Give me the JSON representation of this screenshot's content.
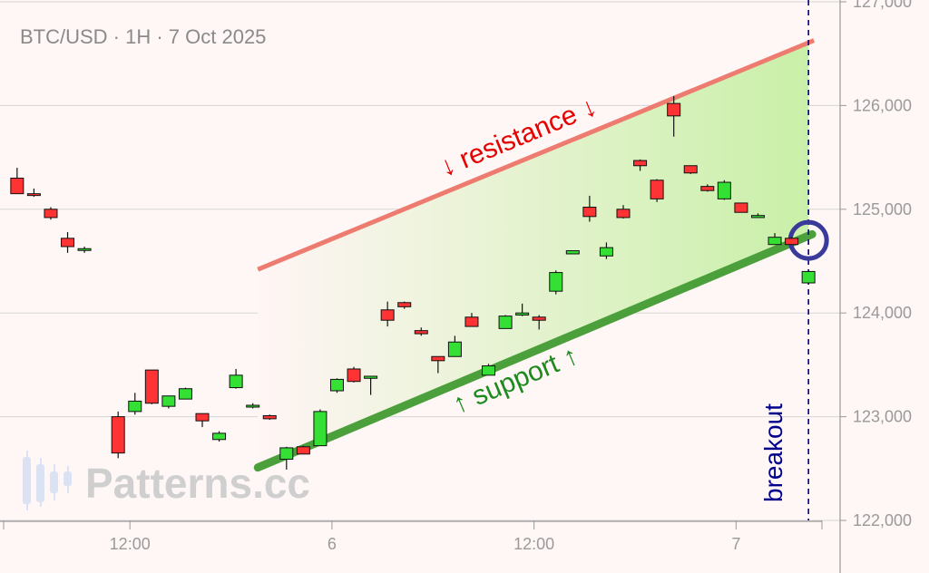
{
  "header": {
    "title": "BTC/USD · 1H · 7 Oct 2025"
  },
  "watermark": {
    "text": "Patterns.cc"
  },
  "chart_data": {
    "type": "candlestick",
    "symbol": "BTC/USD",
    "timeframe": "1H",
    "ylim": [
      122000,
      127000
    ],
    "y_ticks": [
      {
        "value": 122000,
        "label": "122,000"
      },
      {
        "value": 123000,
        "label": "123,000"
      },
      {
        "value": 124000,
        "label": "124,000"
      },
      {
        "value": 125000,
        "label": "125,000"
      },
      {
        "value": 126000,
        "label": "126,000"
      },
      {
        "value": 127000,
        "label": "127,000"
      }
    ],
    "x_ticks": [
      {
        "index": 6.7,
        "label": "12:00"
      },
      {
        "index": 18.7,
        "label": "6"
      },
      {
        "index": 30.7,
        "label": "12:00"
      },
      {
        "index": 42.7,
        "label": "7"
      }
    ],
    "x_range": [
      -0.8,
      47.8
    ],
    "candles": [
      {
        "i": 0,
        "o": 125300,
        "h": 125400,
        "l": 125150,
        "c": 125150
      },
      {
        "i": 1,
        "o": 125150,
        "h": 125200,
        "l": 125120,
        "c": 125140
      },
      {
        "i": 2,
        "o": 125000,
        "h": 125020,
        "l": 124900,
        "c": 124920
      },
      {
        "i": 3,
        "o": 124720,
        "h": 124780,
        "l": 124580,
        "c": 124640
      },
      {
        "i": 4,
        "o": 124620,
        "h": 124640,
        "l": 124580,
        "c": 124620
      },
      {
        "i": 6,
        "o": 123000,
        "h": 123050,
        "l": 122600,
        "c": 122650
      },
      {
        "i": 7,
        "o": 123050,
        "h": 123230,
        "l": 123020,
        "c": 123150
      },
      {
        "i": 8,
        "o": 123450,
        "h": 123450,
        "l": 123120,
        "c": 123130
      },
      {
        "i": 9,
        "o": 123100,
        "h": 123200,
        "l": 123080,
        "c": 123200
      },
      {
        "i": 10,
        "o": 123170,
        "h": 123280,
        "l": 123170,
        "c": 123270
      },
      {
        "i": 11,
        "o": 123030,
        "h": 123030,
        "l": 122900,
        "c": 122960
      },
      {
        "i": 12,
        "o": 122780,
        "h": 122860,
        "l": 122760,
        "c": 122840
      },
      {
        "i": 13,
        "o": 123280,
        "h": 123460,
        "l": 123270,
        "c": 123400
      },
      {
        "i": 14,
        "o": 123100,
        "h": 123130,
        "l": 123080,
        "c": 123110
      },
      {
        "i": 15,
        "o": 123010,
        "h": 123020,
        "l": 122970,
        "c": 122980
      },
      {
        "i": 16,
        "o": 122590,
        "h": 122710,
        "l": 122490,
        "c": 122700
      },
      {
        "i": 17,
        "o": 122710,
        "h": 122720,
        "l": 122640,
        "c": 122640
      },
      {
        "i": 18,
        "o": 122720,
        "h": 123070,
        "l": 122720,
        "c": 123050
      },
      {
        "i": 19,
        "o": 123250,
        "h": 123370,
        "l": 123230,
        "c": 123360
      },
      {
        "i": 20,
        "o": 123460,
        "h": 123480,
        "l": 123330,
        "c": 123340
      },
      {
        "i": 21,
        "o": 123370,
        "h": 123390,
        "l": 123210,
        "c": 123390
      },
      {
        "i": 22,
        "o": 124030,
        "h": 124110,
        "l": 123870,
        "c": 123930
      },
      {
        "i": 23,
        "o": 124100,
        "h": 124110,
        "l": 124040,
        "c": 124060
      },
      {
        "i": 24,
        "o": 123830,
        "h": 123860,
        "l": 123780,
        "c": 123800
      },
      {
        "i": 25,
        "o": 123580,
        "h": 123580,
        "l": 123420,
        "c": 123540
      },
      {
        "i": 26,
        "o": 123580,
        "h": 123780,
        "l": 123580,
        "c": 123720
      },
      {
        "i": 27,
        "o": 123960,
        "h": 124000,
        "l": 123870,
        "c": 123870
      },
      {
        "i": 28,
        "o": 123400,
        "h": 123510,
        "l": 123400,
        "c": 123490
      },
      {
        "i": 29,
        "o": 123850,
        "h": 123980,
        "l": 123850,
        "c": 123970
      },
      {
        "i": 30,
        "o": 123980,
        "h": 124090,
        "l": 123970,
        "c": 124000
      },
      {
        "i": 31,
        "o": 123960,
        "h": 123980,
        "l": 123840,
        "c": 123930
      },
      {
        "i": 32,
        "o": 124210,
        "h": 124410,
        "l": 124180,
        "c": 124390
      },
      {
        "i": 33,
        "o": 124570,
        "h": 124600,
        "l": 124570,
        "c": 124600
      },
      {
        "i": 34,
        "o": 125020,
        "h": 125130,
        "l": 124880,
        "c": 124930
      },
      {
        "i": 35,
        "o": 124550,
        "h": 124680,
        "l": 124520,
        "c": 124630
      },
      {
        "i": 36,
        "o": 125000,
        "h": 125040,
        "l": 124910,
        "c": 124920
      },
      {
        "i": 37,
        "o": 125470,
        "h": 125480,
        "l": 125370,
        "c": 125420
      },
      {
        "i": 38,
        "o": 125280,
        "h": 125290,
        "l": 125070,
        "c": 125100
      },
      {
        "i": 39,
        "o": 126020,
        "h": 126090,
        "l": 125700,
        "c": 125900
      },
      {
        "i": 40,
        "o": 125420,
        "h": 125420,
        "l": 125340,
        "c": 125350
      },
      {
        "i": 41,
        "o": 125220,
        "h": 125240,
        "l": 125170,
        "c": 125180
      },
      {
        "i": 42,
        "o": 125100,
        "h": 125280,
        "l": 125090,
        "c": 125260
      },
      {
        "i": 43,
        "o": 125060,
        "h": 125060,
        "l": 124970,
        "c": 124970
      },
      {
        "i": 44,
        "o": 124920,
        "h": 124960,
        "l": 124920,
        "c": 124940
      },
      {
        "i": 45,
        "o": 124660,
        "h": 124770,
        "l": 124660,
        "c": 124730
      },
      {
        "i": 46,
        "o": 124720,
        "h": 124730,
        "l": 124660,
        "c": 124660
      },
      {
        "i": 47,
        "o": 124290,
        "h": 124400,
        "l": 124290,
        "c": 124400
      }
    ],
    "channel": {
      "x_start": 14.3,
      "x_end": 47.0,
      "resistance": {
        "start": 124420,
        "end": 126610
      },
      "support": {
        "start": 122510,
        "end": 124750
      },
      "fill_colors": [
        "#fff5f5",
        "#c9f0a8"
      ]
    },
    "breakout": {
      "x": 47.0,
      "y": 124700
    },
    "annotations": {
      "resistance_label": "↓ resistance ↓",
      "support_label": "↑ support ↑",
      "breakout_label": "breakout"
    },
    "colors": {
      "up": "#33e033",
      "down": "#ff3333",
      "resistance": "#ee7b70",
      "support": "#4ca03c",
      "breakout_line": "#00008b",
      "breakout_circle": "#3a3a9a",
      "grid": "#d6d6d6",
      "axis": "#9a9a9a"
    },
    "grid": true
  }
}
